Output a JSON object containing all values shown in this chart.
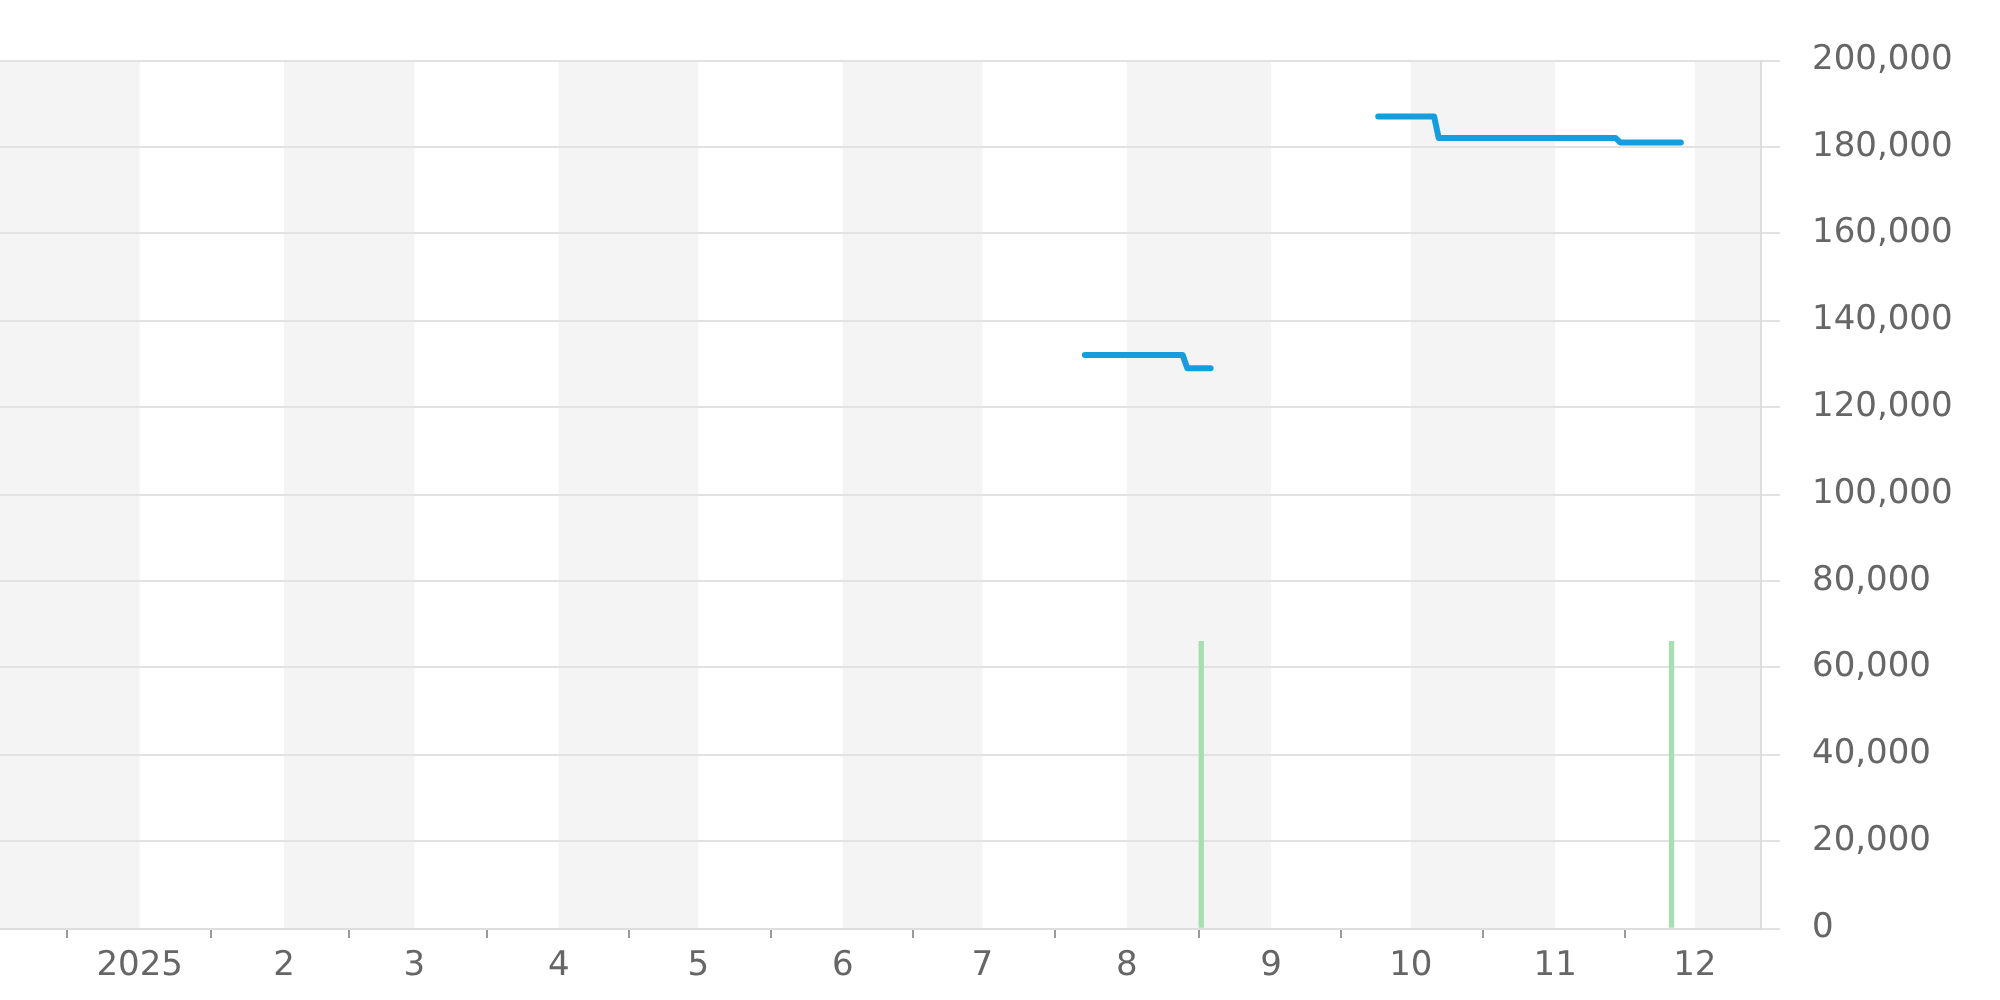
{
  "chart_data": {
    "type": "line",
    "series": [
      {
        "color": "#149ee0",
        "x": [
          "2025-07-23",
          "2025-08-13",
          "2025-08-14",
          "2025-08-19"
        ],
        "values": [
          132000,
          132000,
          129000,
          129000
        ]
      },
      {
        "color": "#149ee0",
        "x": [
          "2025-09-24",
          "2025-10-06",
          "2025-10-07",
          "2025-11-14",
          "2025-11-15",
          "2025-11-28"
        ],
        "values": [
          187000,
          187000,
          182000,
          182000,
          181000,
          181000
        ]
      },
      {
        "type": "bar",
        "color": "#a6dfb1",
        "x": [
          "2025-08-17",
          "2025-11-26"
        ],
        "values": [
          66000,
          66000
        ]
      }
    ],
    "xlim": [
      "2024-12-02",
      "2025-12-15"
    ],
    "xticks": [
      {
        "value": "2025-01-01",
        "label": "2025"
      },
      {
        "value": "2025-02-01",
        "label": "2"
      },
      {
        "value": "2025-03-01",
        "label": "3"
      },
      {
        "value": "2025-04-01",
        "label": "4"
      },
      {
        "value": "2025-05-01",
        "label": "5"
      },
      {
        "value": "2025-06-01",
        "label": "6"
      },
      {
        "value": "2025-07-01",
        "label": "7"
      },
      {
        "value": "2025-08-01",
        "label": "8"
      },
      {
        "value": "2025-09-01",
        "label": "9"
      },
      {
        "value": "2025-10-01",
        "label": "10"
      },
      {
        "value": "2025-11-01",
        "label": "11"
      },
      {
        "value": "2025-12-01",
        "label": "12"
      }
    ],
    "ylim": [
      0,
      200000
    ],
    "yticks": [
      0,
      {
        "value": 20000,
        "label": "20,000"
      },
      {
        "value": 40000,
        "label": "40,000"
      },
      {
        "value": 60000,
        "label": "60,000"
      },
      {
        "value": 80000,
        "label": "80,000"
      },
      {
        "value": 100000,
        "label": "100,000"
      },
      {
        "value": 120000,
        "label": "120,000"
      },
      {
        "value": 140000,
        "label": "140,000"
      },
      {
        "value": 160000,
        "label": "160,000"
      },
      {
        "value": 180000,
        "label": "180,000"
      },
      {
        "value": 200000,
        "label": "200,000"
      }
    ],
    "bands": [
      {
        "axis": "x",
        "from": "2024-12-02",
        "to": "2025-01-01",
        "color": "#f4f4f4"
      },
      {
        "axis": "x",
        "from": "2025-02-01",
        "to": "2025-03-01",
        "color": "#f4f4f4"
      },
      {
        "axis": "x",
        "from": "2025-04-01",
        "to": "2025-05-01",
        "color": "#f4f4f4"
      },
      {
        "axis": "x",
        "from": "2025-06-01",
        "to": "2025-07-01",
        "color": "#f4f4f4"
      },
      {
        "axis": "x",
        "from": "2025-08-01",
        "to": "2025-09-01",
        "color": "#f4f4f4"
      },
      {
        "axis": "x",
        "from": "2025-10-01",
        "to": "2025-11-01",
        "color": "#f4f4f4"
      },
      {
        "axis": "x",
        "from": "2025-12-01",
        "to": "2025-12-15",
        "color": "#f4f4f4"
      }
    ],
    "grid": "y",
    "legend": false,
    "marker": "none",
    "line_style": "solid"
  }
}
